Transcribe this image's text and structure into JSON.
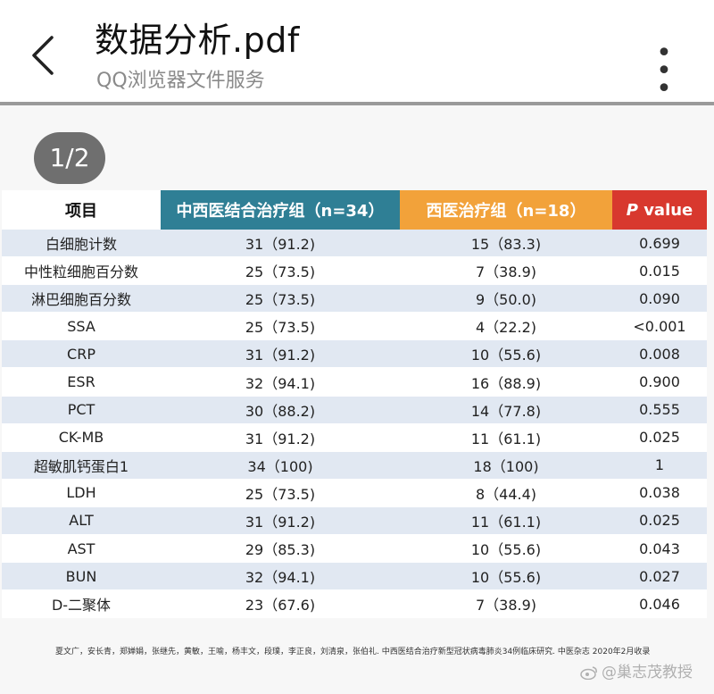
{
  "header": {
    "back_icon": "chevron-left-icon",
    "title": "数据分析.pdf",
    "subtitle": "QQ浏览器文件服务",
    "more_label": "• • •"
  },
  "viewer": {
    "page_indicator": "1/2"
  },
  "table": {
    "headers": {
      "item": "项目",
      "tcm_group": "中西医结合治疗组（n=34）",
      "wm_group": "西医治疗组（n=18）",
      "p_letter": "P",
      "p_rest": " value"
    },
    "colors": {
      "tcm_header": "#2f7f95",
      "wm_header": "#f2a23a",
      "p_header": "#d8382e",
      "row_stripe": "#e1e8f2"
    },
    "rows": [
      {
        "item": "白细胞计数",
        "tcm": "31（91.2)",
        "wm": "15（83.3)",
        "p": "0.699"
      },
      {
        "item": "中性粒细胞百分数",
        "tcm": "25（73.5)",
        "wm": "7（38.9)",
        "p": "0.015"
      },
      {
        "item": "淋巴细胞百分数",
        "tcm": "25（73.5)",
        "wm": "9（50.0)",
        "p": "0.090"
      },
      {
        "item": "SSA",
        "tcm": "25（73.5)",
        "wm": "4（22.2)",
        "p": "<0.001"
      },
      {
        "item": "CRP",
        "tcm": "31（91.2)",
        "wm": "10（55.6)",
        "p": "0.008"
      },
      {
        "item": "ESR",
        "tcm": "32（94.1)",
        "wm": "16（88.9)",
        "p": "0.900"
      },
      {
        "item": "PCT",
        "tcm": "30（88.2)",
        "wm": "14（77.8)",
        "p": "0.555"
      },
      {
        "item": "CK-MB",
        "tcm": "31（91.2)",
        "wm": "11（61.1)",
        "p": "0.025"
      },
      {
        "item": "超敏肌钙蛋白1",
        "tcm": "34（100)",
        "wm": "18（100)",
        "p": "1"
      },
      {
        "item": "LDH",
        "tcm": "25（73.5)",
        "wm": "8（44.4)",
        "p": "0.038"
      },
      {
        "item": "ALT",
        "tcm": "31（91.2)",
        "wm": "11（61.1)",
        "p": "0.025"
      },
      {
        "item": "AST",
        "tcm": "29（85.3)",
        "wm": "10（55.6)",
        "p": "0.043"
      },
      {
        "item": "BUN",
        "tcm": "32（94.1)",
        "wm": "10（55.6)",
        "p": "0.027"
      },
      {
        "item": "D-二聚体",
        "tcm": "23（67.6)",
        "wm": "7（38.9)",
        "p": "0.046"
      }
    ]
  },
  "footer": {
    "reference": "夏文广，安长青，郑婵娟，张继先，黄敏，王喻，杨丰文，段璞，李正良，刘清泉，张伯礼. 中西医结合治疗新型冠状病毒肺炎34例临床研究. 中医杂志 2020年2月收录",
    "watermark": "@巢志茂教授",
    "watermark_icon": "weibo-icon"
  }
}
